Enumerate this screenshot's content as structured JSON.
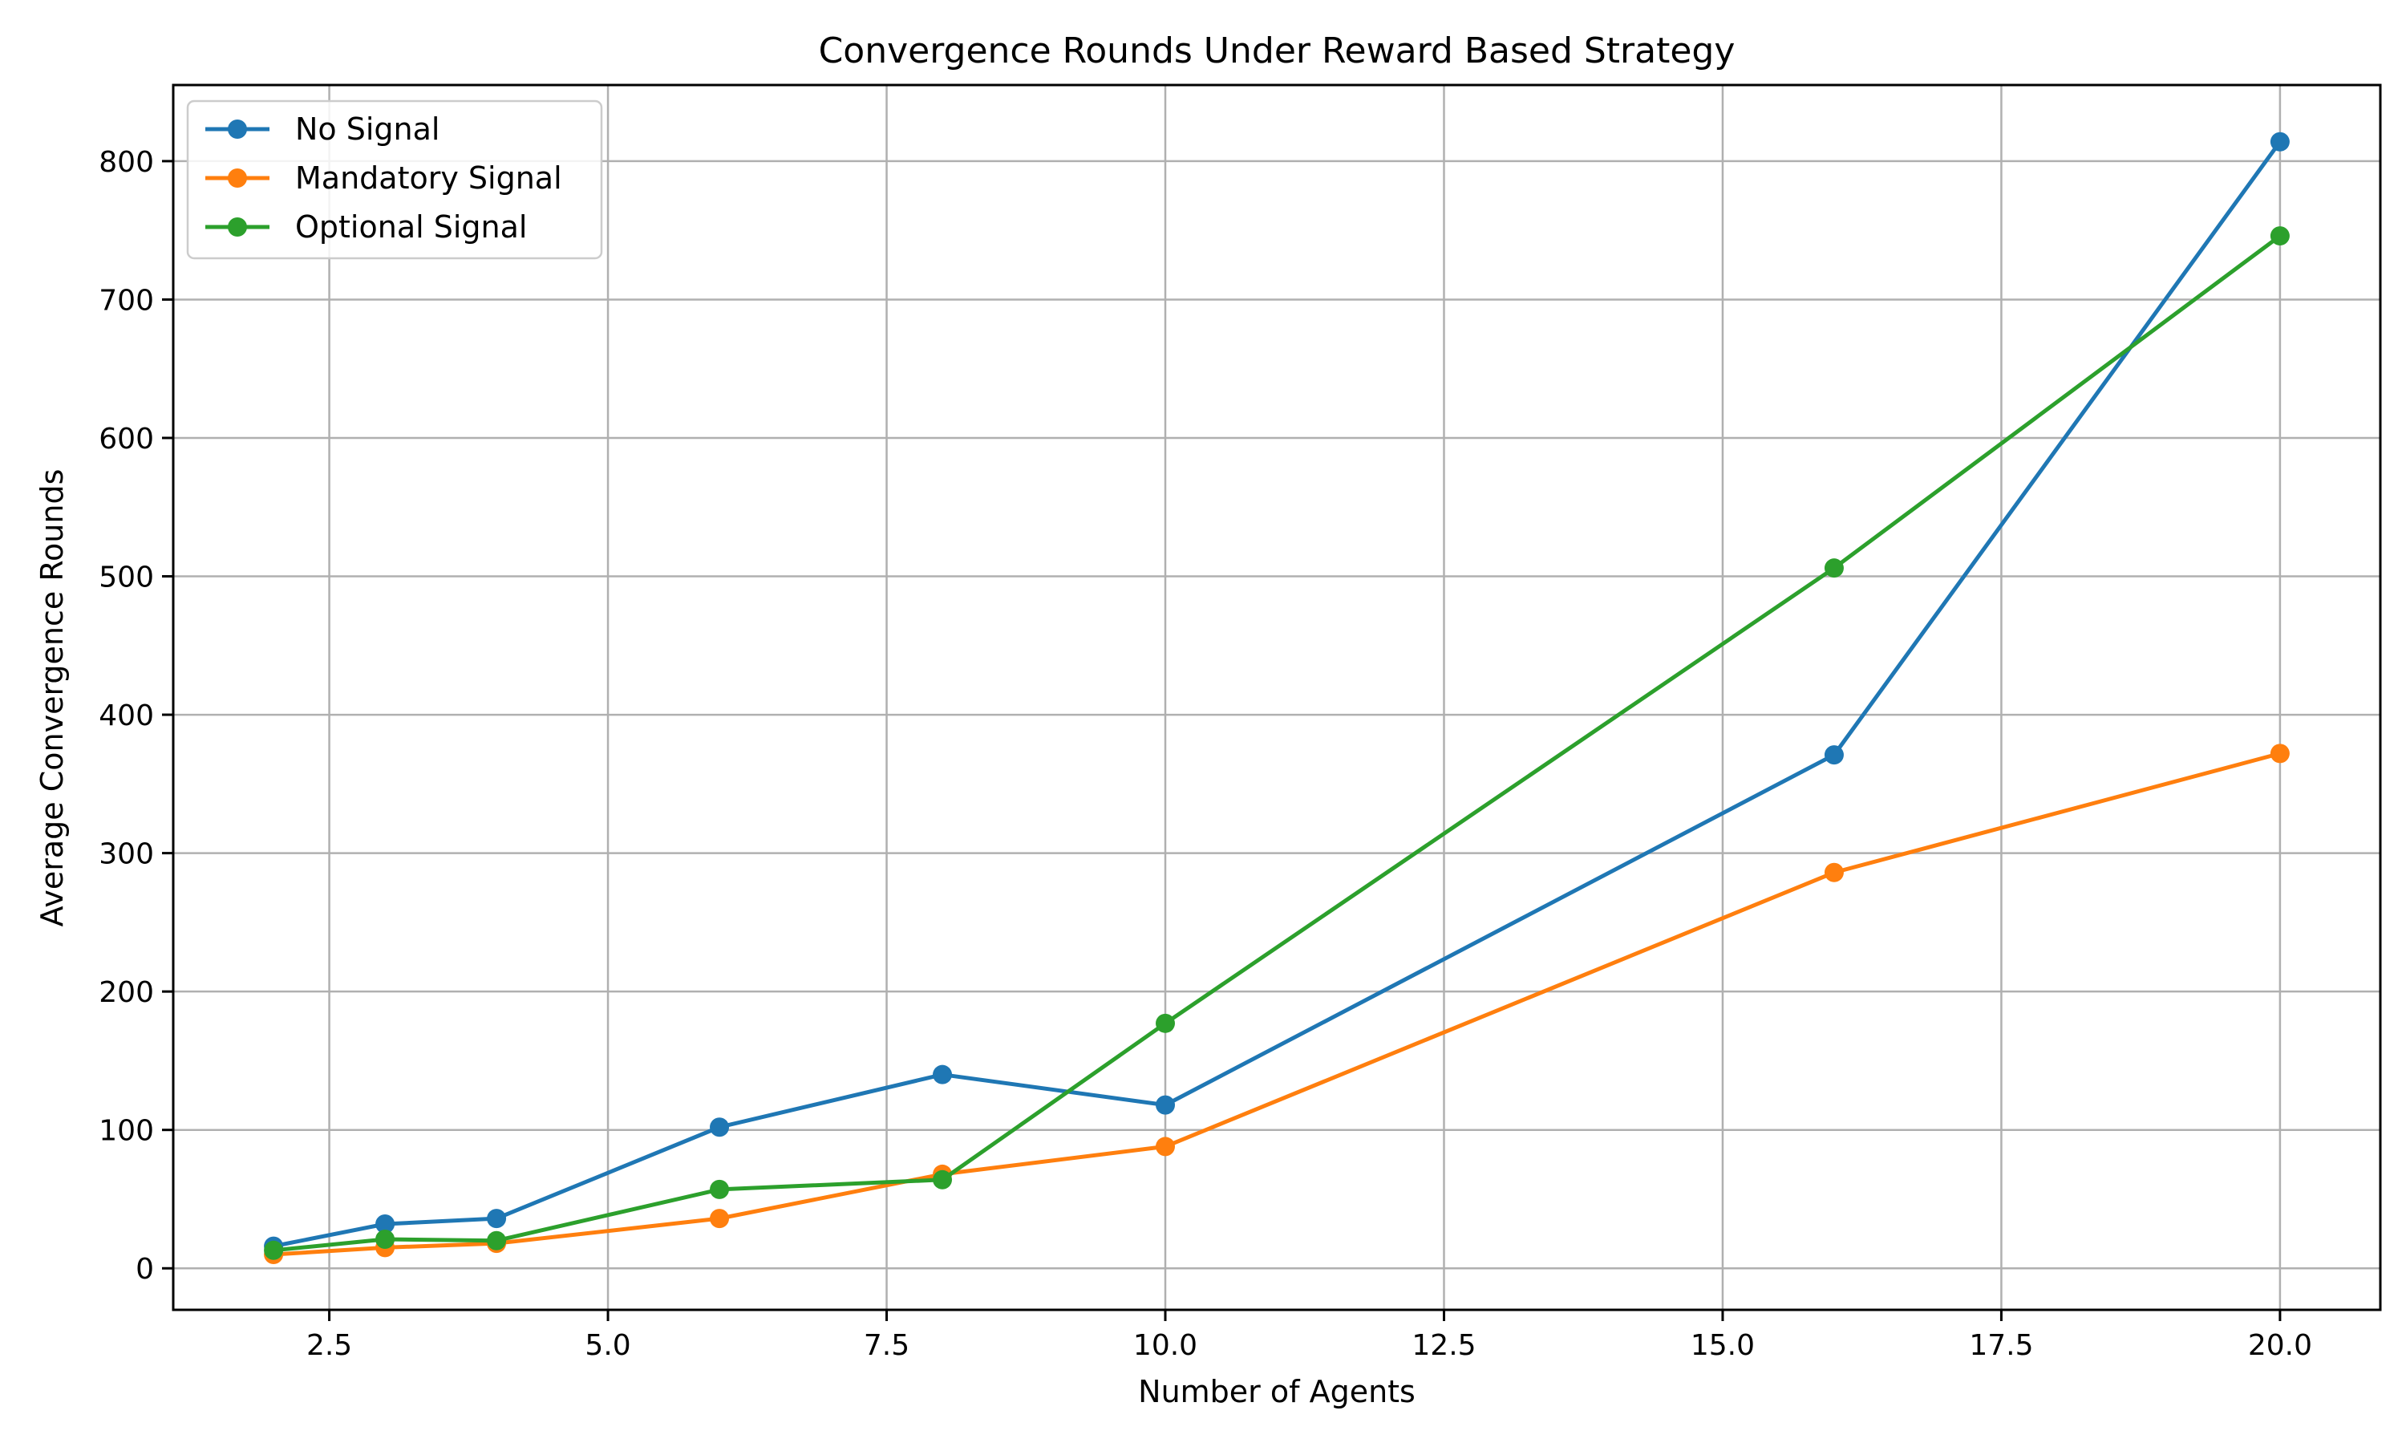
{
  "chart_data": {
    "type": "line",
    "title": "Convergence Rounds Under Reward Based Strategy",
    "xlabel": "Number of Agents",
    "ylabel": "Average Convergence Rounds",
    "xlim": [
      1.1,
      20.9
    ],
    "ylim": [
      -30,
      855
    ],
    "x_ticks": [
      2.5,
      5.0,
      7.5,
      10.0,
      12.5,
      15.0,
      17.5,
      20.0
    ],
    "x_tick_labels": [
      "2.5",
      "5.0",
      "7.5",
      "10.0",
      "12.5",
      "15.0",
      "17.5",
      "20.0"
    ],
    "y_ticks": [
      0,
      100,
      200,
      300,
      400,
      500,
      600,
      700,
      800
    ],
    "y_tick_labels": [
      "0",
      "100",
      "200",
      "300",
      "400",
      "500",
      "600",
      "700",
      "800"
    ],
    "grid": true,
    "legend_position": "top-left",
    "x": [
      2,
      3,
      4,
      6,
      8,
      10,
      16,
      20
    ],
    "series": [
      {
        "name": "No Signal",
        "color": "#1f77b4",
        "values": [
          16,
          32,
          36,
          102,
          140,
          118,
          371,
          814
        ]
      },
      {
        "name": "Mandatory Signal",
        "color": "#ff7f0e",
        "values": [
          10,
          15,
          18,
          36,
          68,
          88,
          286,
          372
        ]
      },
      {
        "name": "Optional Signal",
        "color": "#2ca02c",
        "values": [
          13,
          21,
          20,
          57,
          64,
          177,
          506,
          746
        ]
      }
    ]
  }
}
